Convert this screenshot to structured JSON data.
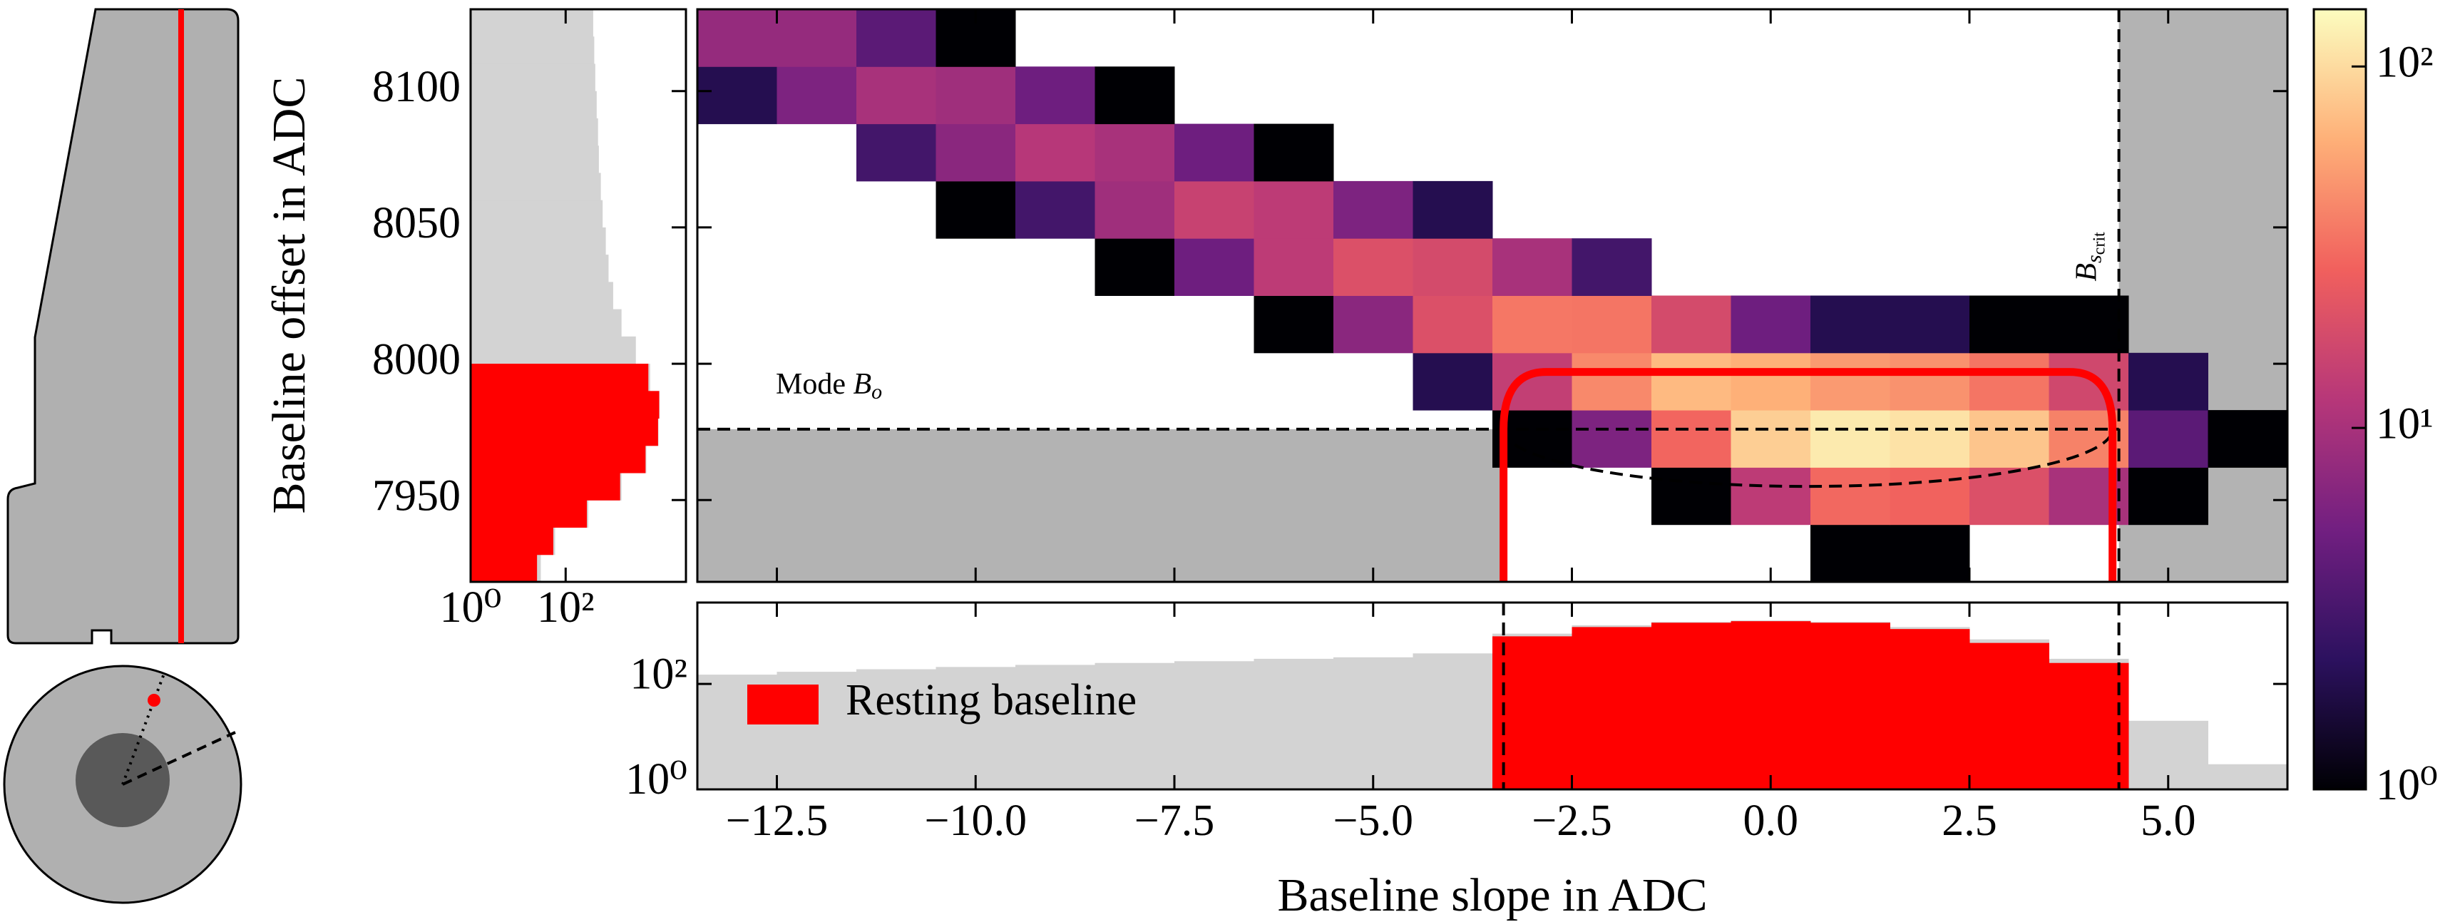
{
  "chart_data": [
    {
      "type": "heatmap",
      "ylabel": "Baseline offset in ADC",
      "xlim": [
        -13.5,
        6.5
      ],
      "ylim": [
        7920,
        8130
      ],
      "yticks": [
        7950,
        8000,
        8050,
        8100
      ],
      "x_bins": [
        -13.5,
        -12.5,
        -11.5,
        -10.5,
        -9.5,
        -8.5,
        -7.5,
        -6.5,
        -5.5,
        -4.5,
        -3.5,
        -2.5,
        -1.5,
        -0.5,
        0.5,
        1.5,
        2.5,
        3.5,
        4.5,
        5.5,
        6.5
      ],
      "y_bins": [
        7920,
        7941,
        7962,
        7983,
        8004,
        8025,
        8046,
        8067,
        8088,
        8109,
        8130
      ],
      "z": [
        [
          null,
          null,
          null,
          null,
          null,
          null,
          null,
          null,
          null,
          null,
          null,
          null,
          null,
          null,
          1,
          1,
          null,
          null,
          null,
          null
        ],
        [
          null,
          null,
          null,
          null,
          null,
          null,
          null,
          null,
          null,
          null,
          null,
          null,
          1,
          13,
          30,
          28,
          20,
          10,
          1,
          null
        ],
        [
          null,
          null,
          null,
          null,
          null,
          null,
          null,
          null,
          null,
          null,
          1,
          6,
          29,
          87,
          118,
          108,
          79,
          39,
          4,
          1
        ],
        [
          null,
          null,
          null,
          null,
          null,
          null,
          null,
          null,
          null,
          2,
          14,
          42,
          70,
          63,
          50,
          46,
          34,
          17,
          2,
          null
        ],
        [
          null,
          null,
          null,
          null,
          null,
          null,
          null,
          1,
          7,
          20,
          35,
          34,
          18,
          5,
          2,
          2,
          1,
          1,
          null,
          null
        ],
        [
          null,
          null,
          null,
          null,
          null,
          1,
          5,
          13,
          20,
          18,
          10,
          3,
          null,
          null,
          null,
          null,
          null,
          null,
          null,
          null
        ],
        [
          null,
          null,
          null,
          1,
          3,
          9,
          15,
          13,
          6,
          2,
          null,
          null,
          null,
          null,
          null,
          null,
          null,
          null,
          null,
          null
        ],
        [
          null,
          null,
          3,
          7,
          12,
          10,
          5,
          1,
          null,
          null,
          null,
          null,
          null,
          null,
          null,
          null,
          null,
          null,
          null,
          null
        ],
        [
          2,
          6,
          10,
          9,
          5,
          1,
          null,
          null,
          null,
          null,
          null,
          null,
          null,
          null,
          null,
          null,
          null,
          null,
          null,
          null
        ],
        [
          8,
          8,
          4,
          1,
          null,
          null,
          null,
          null,
          null,
          null,
          null,
          null,
          null,
          null,
          null,
          null,
          null,
          null,
          null,
          null
        ]
      ],
      "colormap": [
        "#000004",
        "#2c115f",
        "#721f81",
        "#b73779",
        "#f1605d",
        "#feb078",
        "#fcfdbf"
      ],
      "clim": [
        1,
        144
      ],
      "color_scale": "log",
      "cticks": [
        {
          "value": 1,
          "label": "10⁰"
        },
        {
          "value": 10,
          "label": "10¹"
        },
        {
          "value": 100,
          "label": "10²"
        }
      ],
      "mode_offset": 7976,
      "slope_crit": 4.38,
      "selection": {
        "slope_min": -3.36,
        "slope_max": 4.3,
        "offset_top": 7997,
        "ellipse_bottom": 7955,
        "color": "#ff0000"
      },
      "excluded_color": "#b3b3b3",
      "mode_label": {
        "text": "Mode ",
        "symbol": "B",
        "subscript": "o"
      },
      "crit_label": {
        "symbol": "B",
        "subscript": "s",
        "subsubscript": "crit"
      }
    },
    {
      "type": "histogram",
      "orientation": "horizontal",
      "log_x": true,
      "xlim": [
        1,
        34000
      ],
      "xticks": [
        {
          "value": 1,
          "label": "10⁰"
        },
        {
          "value": 100,
          "label": "10²"
        }
      ],
      "bins": [
        7920,
        7930,
        7940,
        7950,
        7960,
        7970,
        7980,
        7990,
        8000,
        8010,
        8020,
        8030,
        8040,
        8050,
        8060,
        8070,
        8080,
        8090,
        8100,
        8110,
        8120,
        8130
      ],
      "series": [
        {
          "color": "#d3d3d3",
          "values": [
            30,
            60,
            300,
            1500,
            5000,
            9000,
            9500,
            6000,
            3000,
            1500,
            1000,
            800,
            700,
            600,
            550,
            500,
            480,
            450,
            420,
            400,
            380
          ]
        },
        {
          "color": "#ff0000",
          "values": [
            25,
            55,
            280,
            1400,
            4800,
            8800,
            9300,
            5500,
            null,
            null,
            null,
            null,
            null,
            null,
            null,
            null,
            null,
            null,
            null,
            null,
            null
          ]
        }
      ]
    },
    {
      "type": "histogram",
      "orientation": "vertical",
      "log_y": true,
      "xlabel": "Baseline slope in ADC",
      "xlim": [
        -13.5,
        6.5
      ],
      "ylim": [
        1,
        3500
      ],
      "xticks": [
        {
          "value": -12.5,
          "label": "−12.5"
        },
        {
          "value": -10,
          "label": "−10.0"
        },
        {
          "value": -7.5,
          "label": "−7.5"
        },
        {
          "value": -5,
          "label": "−5.0"
        },
        {
          "value": -2.5,
          "label": "−2.5"
        },
        {
          "value": 0,
          "label": "0.0"
        },
        {
          "value": 2.5,
          "label": "2.5"
        },
        {
          "value": 5,
          "label": "5.0"
        }
      ],
      "yticks": [
        {
          "value": 1,
          "label": "10⁰"
        },
        {
          "value": 100,
          "label": "10²"
        }
      ],
      "bins": [
        -13.5,
        -12.5,
        -11.5,
        -10.5,
        -9.5,
        -8.5,
        -7.5,
        -6.5,
        -5.5,
        -4.5,
        -3.5,
        -2.5,
        -1.5,
        -0.5,
        0.5,
        1.5,
        2.5,
        3.5,
        4.5,
        5.5,
        6.5
      ],
      "series": [
        {
          "color": "#d3d3d3",
          "values": [
            150,
            170,
            190,
            210,
            230,
            250,
            270,
            300,
            320,
            380,
            900,
            1300,
            1500,
            1600,
            1500,
            1200,
            700,
            300,
            20,
            3
          ]
        },
        {
          "name": "Resting baseline",
          "color": "#ff0000",
          "values": [
            null,
            null,
            null,
            null,
            null,
            null,
            null,
            null,
            null,
            null,
            800,
            1200,
            1450,
            1550,
            1450,
            1100,
            600,
            250,
            null,
            null
          ]
        }
      ],
      "vlines": [
        -3.36,
        4.38
      ],
      "legend": "center left"
    }
  ]
}
